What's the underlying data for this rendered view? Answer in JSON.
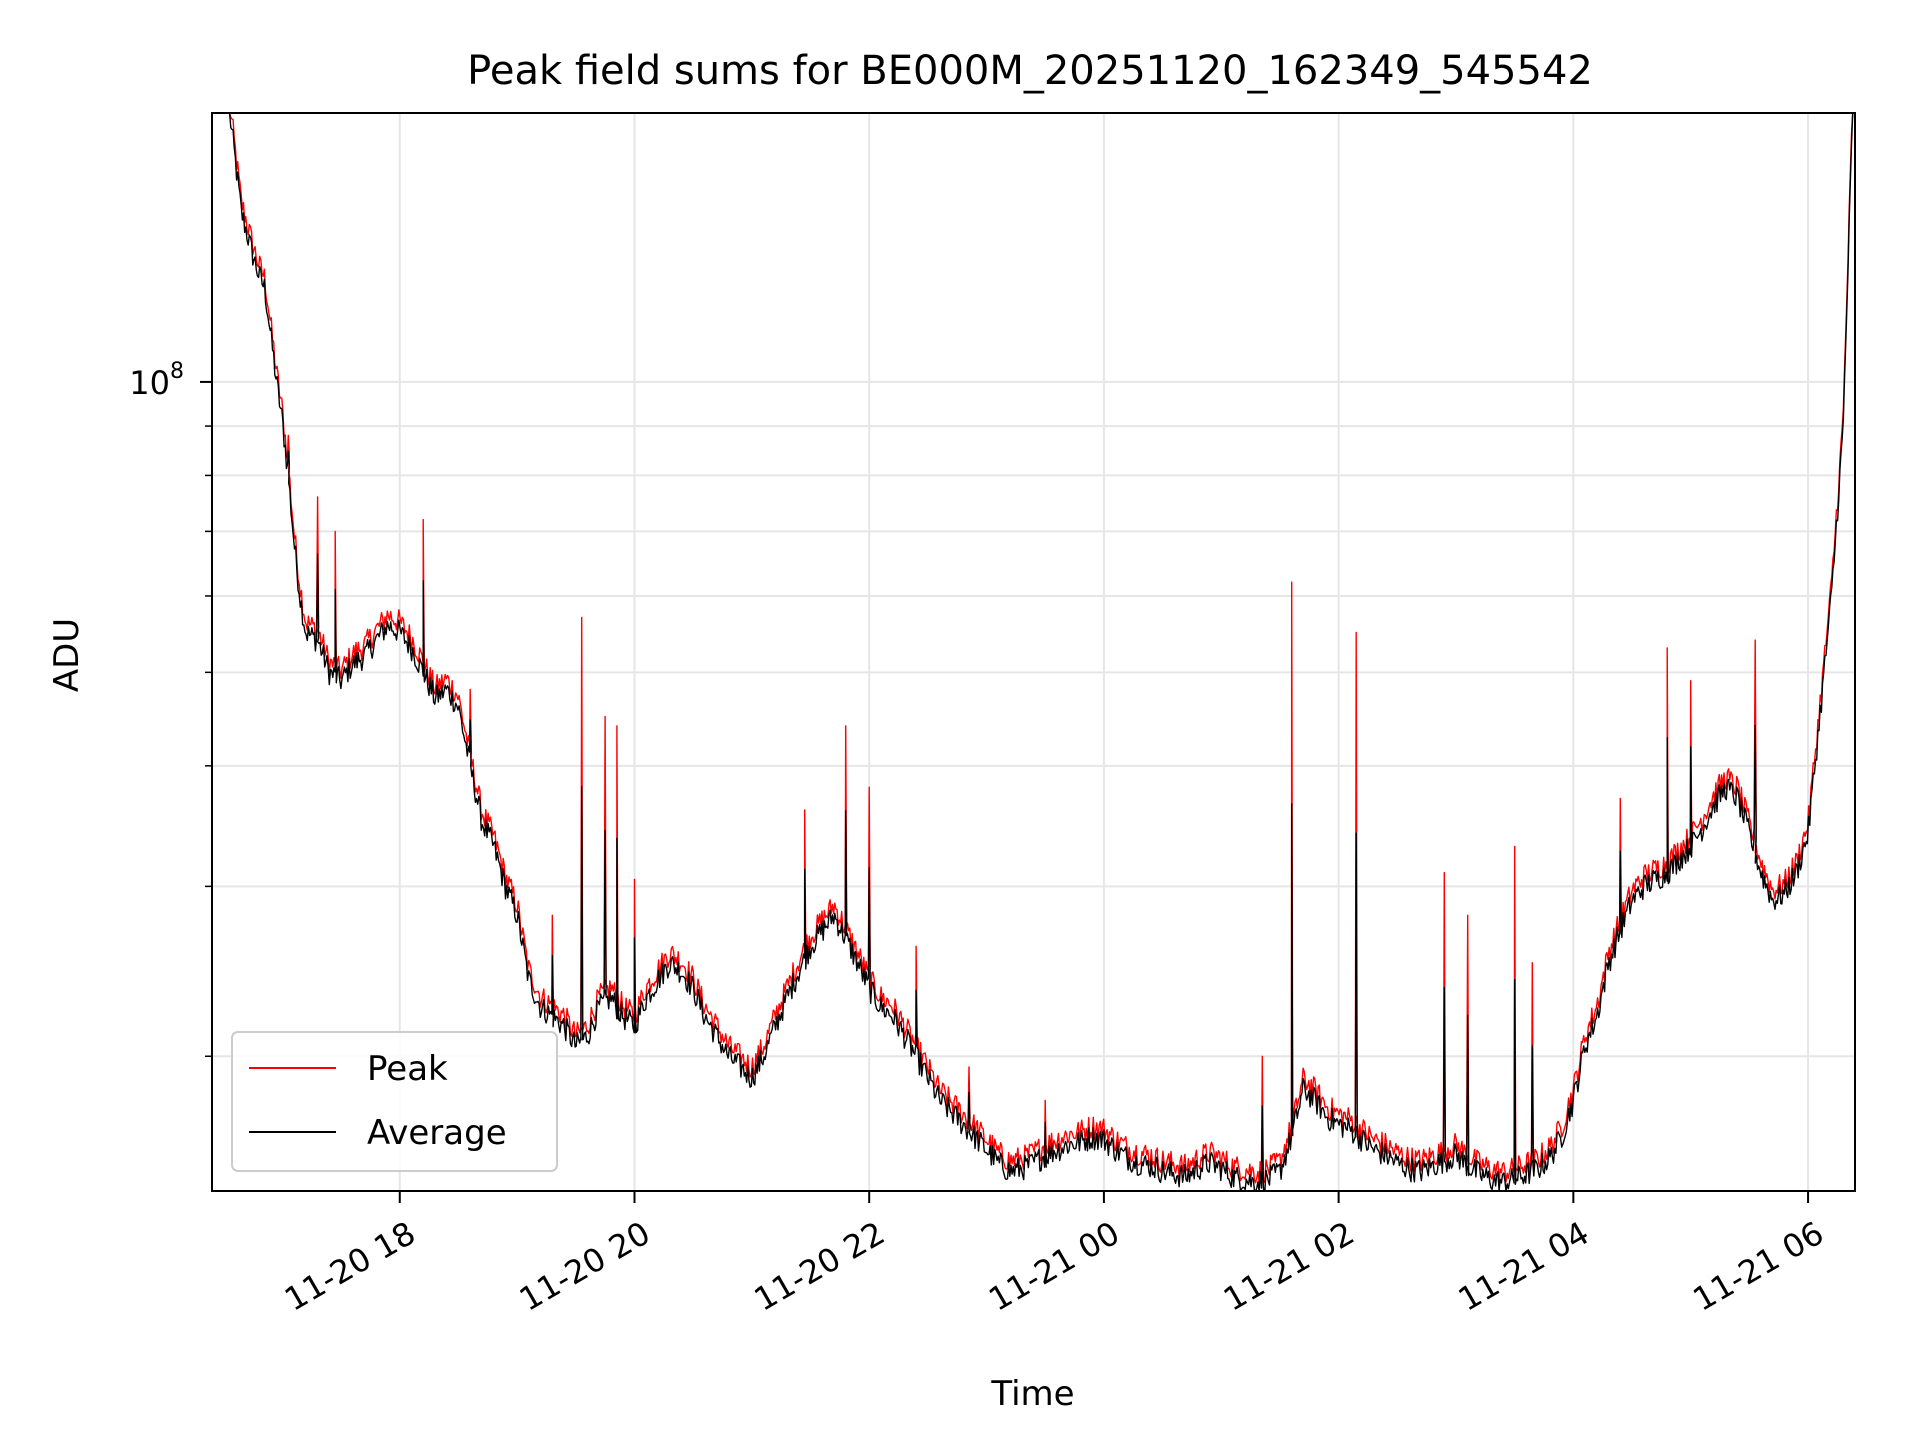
{
  "chart_data": {
    "type": "line",
    "title": "Peak field sums for BE000M_20251120_162349_545542",
    "xlabel": "Time",
    "ylabel": "ADU",
    "yscale": "log",
    "ylim": [
      14500000,
      190000000
    ],
    "xlim_hours": [
      16.4,
      30.4
    ],
    "x_unit": "hours since 2025-11-20 00:00",
    "y_major_tick_label": {
      "base": "10",
      "exponent": "8",
      "value": 100000000
    },
    "y_minor_ticks": [
      20000000,
      30000000,
      40000000,
      50000000,
      60000000,
      70000000,
      80000000,
      90000000,
      200000000
    ],
    "x_ticks": [
      {
        "hour": 18,
        "label": "11-20 18"
      },
      {
        "hour": 20,
        "label": "11-20 20"
      },
      {
        "hour": 22,
        "label": "11-20 22"
      },
      {
        "hour": 24,
        "label": "11-21 00"
      },
      {
        "hour": 26,
        "label": "11-21 02"
      },
      {
        "hour": 28,
        "label": "11-21 04"
      },
      {
        "hour": 30,
        "label": "11-21 06"
      }
    ],
    "grid": true,
    "legend": {
      "position": "lower-left",
      "entries": [
        "Peak",
        "Average"
      ]
    },
    "series": [
      {
        "name": "Peak",
        "color": "#ff0000"
      },
      {
        "name": "Average",
        "color": "#000000"
      }
    ],
    "average_series": [
      [
        16.55,
        190000000
      ],
      [
        16.65,
        150000000
      ],
      [
        16.75,
        135000000
      ],
      [
        16.8,
        129000000
      ],
      [
        16.85,
        125000000
      ],
      [
        16.9,
        112000000
      ],
      [
        16.95,
        100000000
      ],
      [
        17.0,
        91000000
      ],
      [
        17.05,
        80000000
      ],
      [
        17.1,
        68000000
      ],
      [
        17.15,
        60000000
      ],
      [
        17.2,
        55000000
      ],
      [
        17.3,
        54000000
      ],
      [
        17.4,
        50000000
      ],
      [
        17.5,
        49000000
      ],
      [
        17.6,
        51000000
      ],
      [
        17.7,
        52000000
      ],
      [
        17.8,
        54000000
      ],
      [
        17.9,
        56000000
      ],
      [
        18.0,
        55000000
      ],
      [
        18.1,
        53000000
      ],
      [
        18.2,
        50000000
      ],
      [
        18.3,
        47000000
      ],
      [
        18.4,
        48000000
      ],
      [
        18.5,
        46000000
      ],
      [
        18.6,
        40000000
      ],
      [
        18.7,
        35000000
      ],
      [
        18.8,
        33000000
      ],
      [
        18.9,
        30000000
      ],
      [
        19.0,
        28000000
      ],
      [
        19.1,
        24000000
      ],
      [
        19.2,
        22500000
      ],
      [
        19.3,
        22000000
      ],
      [
        19.4,
        21500000
      ],
      [
        19.5,
        20500000
      ],
      [
        19.6,
        21000000
      ],
      [
        19.7,
        22500000
      ],
      [
        19.8,
        23000000
      ],
      [
        19.9,
        22000000
      ],
      [
        20.0,
        21500000
      ],
      [
        20.1,
        23000000
      ],
      [
        20.2,
        24000000
      ],
      [
        20.3,
        25000000
      ],
      [
        20.4,
        24500000
      ],
      [
        20.5,
        23500000
      ],
      [
        20.6,
        22000000
      ],
      [
        20.7,
        21000000
      ],
      [
        20.8,
        20000000
      ],
      [
        20.9,
        19500000
      ],
      [
        21.0,
        19000000
      ],
      [
        21.1,
        20000000
      ],
      [
        21.2,
        21500000
      ],
      [
        21.3,
        23000000
      ],
      [
        21.4,
        24500000
      ],
      [
        21.5,
        26000000
      ],
      [
        21.6,
        27000000
      ],
      [
        21.7,
        28000000
      ],
      [
        21.8,
        26500000
      ],
      [
        21.9,
        25000000
      ],
      [
        22.0,
        23500000
      ],
      [
        22.1,
        22500000
      ],
      [
        22.2,
        22000000
      ],
      [
        22.3,
        21000000
      ],
      [
        22.4,
        20000000
      ],
      [
        22.5,
        19000000
      ],
      [
        22.6,
        18000000
      ],
      [
        22.7,
        17500000
      ],
      [
        22.8,
        17000000
      ],
      [
        22.9,
        16500000
      ],
      [
        23.0,
        16000000
      ],
      [
        23.1,
        15500000
      ],
      [
        23.2,
        15200000
      ],
      [
        23.3,
        15300000
      ],
      [
        23.4,
        15500000
      ],
      [
        23.5,
        15800000
      ],
      [
        23.6,
        16000000
      ],
      [
        23.7,
        16200000
      ],
      [
        23.8,
        16300000
      ],
      [
        23.9,
        16500000
      ],
      [
        24.0,
        16400000
      ],
      [
        24.1,
        16000000
      ],
      [
        24.2,
        15700000
      ],
      [
        24.3,
        15500000
      ],
      [
        24.4,
        15400000
      ],
      [
        24.5,
        15200000
      ],
      [
        24.6,
        15100000
      ],
      [
        24.7,
        15000000
      ],
      [
        24.8,
        15300000
      ],
      [
        24.9,
        15500000
      ],
      [
        25.0,
        15300000
      ],
      [
        25.1,
        15000000
      ],
      [
        25.2,
        14900000
      ],
      [
        25.3,
        14800000
      ],
      [
        25.4,
        14900000
      ],
      [
        25.5,
        15200000
      ],
      [
        25.6,
        16500000
      ],
      [
        25.7,
        18500000
      ],
      [
        25.8,
        18000000
      ],
      [
        25.9,
        17300000
      ],
      [
        26.0,
        17000000
      ],
      [
        26.1,
        16800000
      ],
      [
        26.2,
        16400000
      ],
      [
        26.3,
        16000000
      ],
      [
        26.4,
        15800000
      ],
      [
        26.5,
        15500000
      ],
      [
        26.6,
        15300000
      ],
      [
        26.7,
        15200000
      ],
      [
        26.8,
        15400000
      ],
      [
        26.9,
        15600000
      ],
      [
        27.0,
        15800000
      ],
      [
        27.1,
        15400000
      ],
      [
        27.2,
        15100000
      ],
      [
        27.3,
        14900000
      ],
      [
        27.4,
        14800000
      ],
      [
        27.5,
        14900000
      ],
      [
        27.6,
        15100000
      ],
      [
        27.7,
        15300000
      ],
      [
        27.8,
        15700000
      ],
      [
        27.9,
        16500000
      ],
      [
        28.0,
        18000000
      ],
      [
        28.1,
        20500000
      ],
      [
        28.2,
        22000000
      ],
      [
        28.3,
        25000000
      ],
      [
        28.4,
        27000000
      ],
      [
        28.5,
        29000000
      ],
      [
        28.6,
        30000000
      ],
      [
        28.7,
        30500000
      ],
      [
        28.8,
        31000000
      ],
      [
        28.9,
        32000000
      ],
      [
        29.0,
        33000000
      ],
      [
        29.1,
        34500000
      ],
      [
        29.2,
        36500000
      ],
      [
        29.3,
        38000000
      ],
      [
        29.4,
        37000000
      ],
      [
        29.5,
        34000000
      ],
      [
        29.6,
        31000000
      ],
      [
        29.7,
        29000000
      ],
      [
        29.8,
        29500000
      ],
      [
        29.9,
        31000000
      ],
      [
        30.0,
        34000000
      ],
      [
        30.1,
        45000000
      ],
      [
        30.2,
        60000000
      ],
      [
        30.3,
        90000000
      ],
      [
        30.38,
        190000000
      ]
    ],
    "peak_spikes": [
      [
        17.05,
        88000000
      ],
      [
        17.3,
        76000000
      ],
      [
        17.45,
        70000000
      ],
      [
        18.2,
        72000000
      ],
      [
        18.6,
        48000000
      ],
      [
        19.3,
        28000000
      ],
      [
        19.55,
        57000000
      ],
      [
        19.75,
        45000000
      ],
      [
        19.85,
        44000000
      ],
      [
        20.0,
        30500000
      ],
      [
        21.45,
        36000000
      ],
      [
        21.8,
        44000000
      ],
      [
        22.0,
        38000000
      ],
      [
        22.4,
        26000000
      ],
      [
        22.85,
        19500000
      ],
      [
        23.5,
        18000000
      ],
      [
        24.45,
        16000000
      ],
      [
        25.35,
        20000000
      ],
      [
        25.6,
        62000000
      ],
      [
        26.15,
        55000000
      ],
      [
        26.9,
        31000000
      ],
      [
        27.1,
        28000000
      ],
      [
        27.5,
        33000000
      ],
      [
        27.65,
        25000000
      ],
      [
        28.4,
        37000000
      ],
      [
        28.8,
        53000000
      ],
      [
        29.0,
        49000000
      ],
      [
        29.55,
        54000000
      ]
    ]
  }
}
